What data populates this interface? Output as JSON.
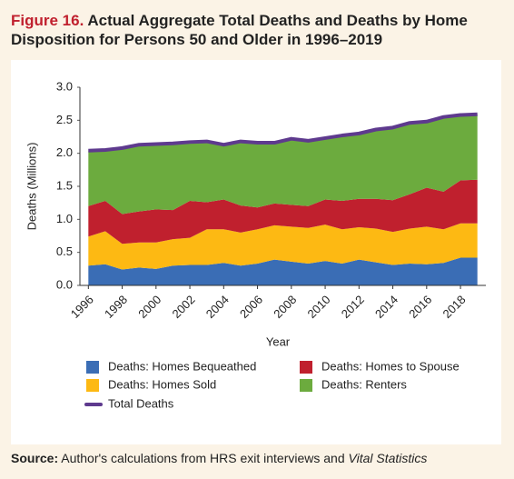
{
  "chart_data": {
    "type": "stacked_area",
    "figure_label": "Figure 16.",
    "title": "Actual Aggregate Total Deaths and Deaths by Home Disposition for Persons 50 and Older in 1996–2019",
    "x_label": "Year",
    "y_label": "Deaths (Millions)",
    "x": [
      1996,
      1997,
      1998,
      1999,
      2000,
      2001,
      2002,
      2003,
      2004,
      2005,
      2006,
      2007,
      2008,
      2009,
      2010,
      2011,
      2012,
      2013,
      2014,
      2015,
      2016,
      2017,
      2018,
      2019
    ],
    "xlim": [
      1995.5,
      2019.5
    ],
    "xticks": [
      1996,
      1998,
      2000,
      2002,
      2004,
      2006,
      2008,
      2010,
      2012,
      2014,
      2016,
      2018
    ],
    "ylim": [
      0,
      3
    ],
    "yticks": [
      {
        "value": 0,
        "label": "0.0"
      },
      0.5,
      {
        "value": 1,
        "label": "1.0"
      },
      1.5,
      {
        "value": 2,
        "label": "2.0"
      },
      2.5,
      {
        "value": 3,
        "label": "3.0"
      }
    ],
    "grid": false,
    "series": [
      {
        "name": "Deaths: Homes Bequeathed",
        "color": "#3a6db5",
        "values": [
          0.3,
          0.32,
          0.24,
          0.27,
          0.25,
          0.3,
          0.31,
          0.31,
          0.34,
          0.3,
          0.33,
          0.39,
          0.36,
          0.33,
          0.37,
          0.33,
          0.39,
          0.35,
          0.31,
          0.33,
          0.32,
          0.34,
          0.42,
          0.42
        ]
      },
      {
        "name": "Deaths: Homes Sold",
        "color": "#fdb913",
        "values": [
          0.44,
          0.5,
          0.39,
          0.38,
          0.4,
          0.4,
          0.41,
          0.54,
          0.51,
          0.5,
          0.52,
          0.52,
          0.53,
          0.54,
          0.55,
          0.52,
          0.49,
          0.51,
          0.5,
          0.53,
          0.57,
          0.51,
          0.52,
          0.52
        ]
      },
      {
        "name": "Deaths: Homes to Spouse",
        "color": "#c0202e",
        "values": [
          0.46,
          0.46,
          0.45,
          0.47,
          0.5,
          0.44,
          0.56,
          0.41,
          0.45,
          0.41,
          0.33,
          0.33,
          0.33,
          0.33,
          0.38,
          0.43,
          0.43,
          0.45,
          0.48,
          0.52,
          0.59,
          0.57,
          0.65,
          0.66
        ]
      },
      {
        "name": "Deaths: Renters",
        "color": "#6cab3e",
        "values": [
          0.84,
          0.77,
          1.0,
          1.01,
          0.99,
          1.01,
          0.89,
          0.92,
          0.83,
          0.97,
          0.98,
          0.92,
          1.0,
          0.99,
          0.93,
          0.99,
          0.99,
          1.05,
          1.1,
          1.08,
          1.0,
          1.13,
          0.99,
          0.99
        ]
      },
      {
        "name": "Total Deaths",
        "color": "#5e3a8e",
        "kind": "line",
        "values": [
          2.04,
          2.05,
          2.08,
          2.13,
          2.14,
          2.15,
          2.17,
          2.18,
          2.13,
          2.18,
          2.16,
          2.16,
          2.22,
          2.19,
          2.23,
          2.27,
          2.3,
          2.36,
          2.39,
          2.46,
          2.48,
          2.55,
          2.58,
          2.59
        ]
      }
    ],
    "source": {
      "label": "Source:",
      "text": "Author's calculations from HRS exit interviews and",
      "italic": "Vital Statistics"
    }
  }
}
